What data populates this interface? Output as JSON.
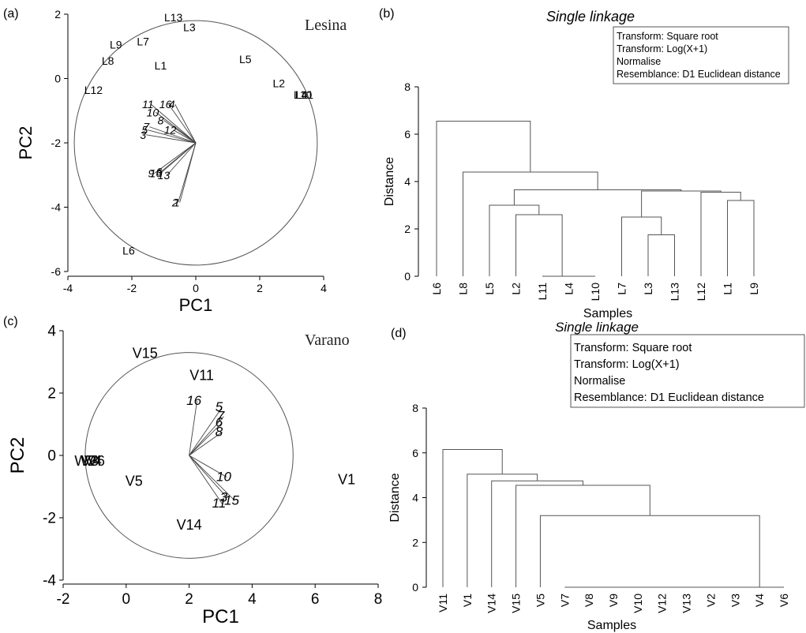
{
  "panels": {
    "a": {
      "label": "(a)",
      "site": "Lesina"
    },
    "b": {
      "label": "(b)"
    },
    "c": {
      "label": "(c)",
      "site": "Varano"
    },
    "d": {
      "label": "(d)"
    }
  },
  "chart_data": [
    {
      "id": "a",
      "type": "scatter",
      "xlabel": "PC1",
      "ylabel": "PC2",
      "xlim": [
        -4,
        4
      ],
      "ylim": [
        -6,
        2
      ],
      "xticks": [
        "-4",
        "-2",
        "0",
        "2",
        "4"
      ],
      "yticks": [
        "-6",
        "-4",
        "-2",
        "0",
        "2"
      ],
      "circle": {
        "cx": 0,
        "cy": -2,
        "r": 3.8
      },
      "points": [
        {
          "label": "L13",
          "x": -0.7,
          "y": 1.9
        },
        {
          "label": "L3",
          "x": -0.2,
          "y": 1.6
        },
        {
          "label": "L9",
          "x": -2.5,
          "y": 1.05
        },
        {
          "label": "L7",
          "x": -1.65,
          "y": 1.15
        },
        {
          "label": "L8",
          "x": -2.75,
          "y": 0.55
        },
        {
          "label": "L1",
          "x": -1.1,
          "y": 0.4
        },
        {
          "label": "L5",
          "x": 1.55,
          "y": 0.6
        },
        {
          "label": "L12",
          "x": -3.2,
          "y": -0.35
        },
        {
          "label": "L2",
          "x": 2.6,
          "y": -0.15
        },
        {
          "label": "L4",
          "x": 3.3,
          "y": -0.5
        },
        {
          "label": "L10",
          "x": 3.35,
          "y": -0.5
        },
        {
          "label": "L11",
          "x": 3.4,
          "y": -0.5
        },
        {
          "label": "L6",
          "x": -2.1,
          "y": -5.35
        }
      ],
      "vectors": [
        {
          "label": "11",
          "x": -1.4,
          "y": -0.8
        },
        {
          "label": "16",
          "x": -0.85,
          "y": -0.8
        },
        {
          "label": "4",
          "x": -0.65,
          "y": -0.8
        },
        {
          "label": "10",
          "x": -1.25,
          "y": -1.05
        },
        {
          "label": "8",
          "x": -1.0,
          "y": -1.3
        },
        {
          "label": "7",
          "x": -1.45,
          "y": -1.5
        },
        {
          "label": "5",
          "x": -1.5,
          "y": -1.6
        },
        {
          "label": "3",
          "x": -1.55,
          "y": -1.75
        },
        {
          "label": "12",
          "x": -0.7,
          "y": -1.6
        },
        {
          "label": "9",
          "x": -1.3,
          "y": -2.95
        },
        {
          "label": "16",
          "x": -1.15,
          "y": -2.95
        },
        {
          "label": "6",
          "x": -1.05,
          "y": -2.9
        },
        {
          "label": "13",
          "x": -0.9,
          "y": -3.0
        },
        {
          "label": "2",
          "x": -0.55,
          "y": -3.85
        },
        {
          "label": "1",
          "x": -0.5,
          "y": -3.85
        }
      ]
    },
    {
      "id": "b",
      "type": "dendrogram",
      "title": "Single linkage",
      "xlabel": "Samples",
      "ylabel": "Distance",
      "ylim": [
        0,
        8
      ],
      "yticks": [
        "0",
        "2",
        "4",
        "6",
        "8"
      ],
      "legend": [
        "Transform: Square root",
        "Transform: Log(X+1)",
        "Normalise",
        "Resemblance: D1 Euclidean distance"
      ],
      "leaves": [
        "L6",
        "L8",
        "L5",
        "L2",
        "L11",
        "L4",
        "L10",
        "L7",
        "L3",
        "L13",
        "L12",
        "L1",
        "L9"
      ],
      "merges": [
        {
          "a": "L4",
          "b": "L10",
          "h": 0
        },
        {
          "a": "L11",
          "b": "C1",
          "h": 0
        },
        {
          "a": "L3",
          "b": "L13",
          "h": 1.75
        },
        {
          "a": "L7",
          "b": "C3",
          "h": 2.5
        },
        {
          "a": "L2",
          "b": "C2",
          "h": 2.6
        },
        {
          "a": "L5",
          "b": "C5",
          "h": 3.0
        },
        {
          "a": "L1",
          "b": "L9",
          "h": 3.2
        },
        {
          "a": "L12",
          "b": "C7",
          "h": 3.55
        },
        {
          "a": "C4",
          "b": "C8",
          "h": 3.6
        },
        {
          "a": "C6",
          "b": "C9",
          "h": 3.65
        },
        {
          "a": "L8",
          "b": "C10",
          "h": 4.4
        },
        {
          "a": "L6",
          "b": "C11",
          "h": 6.55
        }
      ]
    },
    {
      "id": "c",
      "type": "scatter",
      "xlabel": "PC1",
      "ylabel": "PC2",
      "xlim": [
        -2,
        8
      ],
      "ylim": [
        -4,
        4
      ],
      "xticks": [
        "-2",
        "0",
        "2",
        "4",
        "6",
        "8"
      ],
      "yticks": [
        "-4",
        "-2",
        "0",
        "2",
        "4"
      ],
      "circle": {
        "cx": 2,
        "cy": 0,
        "r": 3.3
      },
      "points": [
        {
          "label": "V15",
          "x": 0.6,
          "y": 3.25
        },
        {
          "label": "V11",
          "x": 2.4,
          "y": 2.55
        },
        {
          "label": "V1",
          "x": 7.0,
          "y": -0.8
        },
        {
          "label": "V5",
          "x": 0.25,
          "y": -0.85
        },
        {
          "label": "V14",
          "x": 2.0,
          "y": -2.25
        },
        {
          "label": "W2",
          "x": -1.3,
          "y": -0.2
        },
        {
          "label": "V3",
          "x": -1.15,
          "y": -0.2
        },
        {
          "label": "V4",
          "x": -1.05,
          "y": -0.2
        },
        {
          "label": "V6",
          "x": -0.95,
          "y": -0.2
        }
      ],
      "vectors": [
        {
          "label": "16",
          "x": 2.25,
          "y": 1.75
        },
        {
          "label": "5",
          "x": 3.05,
          "y": 1.55
        },
        {
          "label": "7",
          "x": 3.1,
          "y": 1.25
        },
        {
          "label": "6",
          "x": 3.05,
          "y": 1.05
        },
        {
          "label": "8",
          "x": 3.05,
          "y": 0.75
        },
        {
          "label": "10",
          "x": 3.2,
          "y": -0.7
        },
        {
          "label": "3",
          "x": 3.2,
          "y": -1.35
        },
        {
          "label": "15",
          "x": 3.45,
          "y": -1.45
        },
        {
          "label": "11",
          "x": 3.05,
          "y": -1.55
        }
      ]
    },
    {
      "id": "d",
      "type": "dendrogram",
      "title": "Single linkage",
      "xlabel": "Samples",
      "ylabel": "Distance",
      "ylim": [
        0,
        8
      ],
      "yticks": [
        "0",
        "2",
        "4",
        "6",
        "8"
      ],
      "legend": [
        "Transform: Square root",
        "Transform: Log(X+1)",
        "Normalise",
        "Resemblance: D1 Euclidean distance"
      ],
      "leaves": [
        "V11",
        "V1",
        "V14",
        "V15",
        "V5",
        "V7",
        "V8",
        "V9",
        "V10",
        "V12",
        "V13",
        "V2",
        "V3",
        "V4",
        "V6"
      ],
      "merges": [
        {
          "a": "V7",
          "b": "V8",
          "h": 0
        },
        {
          "a": "C1",
          "b": "V9",
          "h": 0
        },
        {
          "a": "C2",
          "b": "V10",
          "h": 0
        },
        {
          "a": "C3",
          "b": "V12",
          "h": 0
        },
        {
          "a": "C4",
          "b": "V13",
          "h": 0
        },
        {
          "a": "C5",
          "b": "V2",
          "h": 0
        },
        {
          "a": "C6",
          "b": "V3",
          "h": 0
        },
        {
          "a": "C7",
          "b": "V4",
          "h": 0
        },
        {
          "a": "C8",
          "b": "V6",
          "h": 0
        },
        {
          "a": "V5",
          "b": "C9",
          "h": 3.2
        },
        {
          "a": "V15",
          "b": "C10",
          "h": 4.55
        },
        {
          "a": "V14",
          "b": "C11",
          "h": 4.75
        },
        {
          "a": "V1",
          "b": "C12",
          "h": 5.05
        },
        {
          "a": "V11",
          "b": "C13",
          "h": 6.15
        }
      ]
    }
  ]
}
